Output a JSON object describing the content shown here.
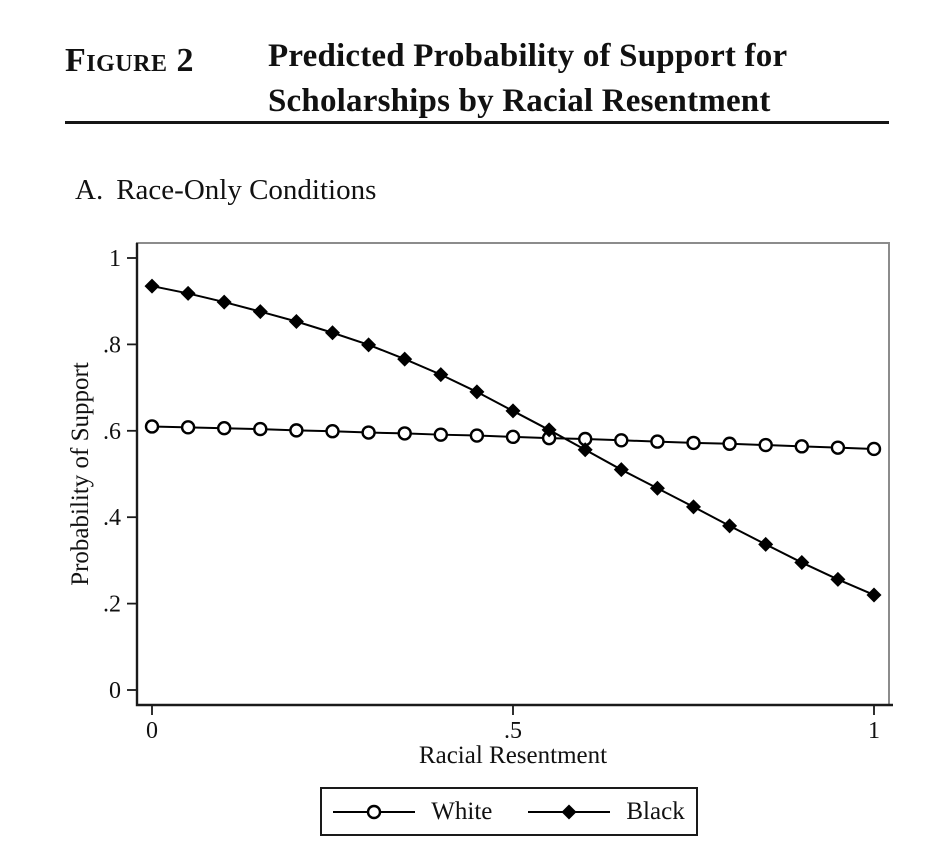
{
  "header": {
    "figure_label": "Figure 2",
    "title_line1": "Predicted Probability of Support for",
    "title_line2": "Scholarships by Racial Resentment"
  },
  "panel": {
    "prefix": "A.",
    "title": "Race-Only Conditions"
  },
  "legend": {
    "items": [
      {
        "label": "White",
        "marker": "open-circle"
      },
      {
        "label": "Black",
        "marker": "filled-diamond"
      }
    ],
    "position": "bottom"
  },
  "colors": {
    "text": "#111111",
    "series_line": "#000000",
    "marker_fill_white_series": "#ffffff",
    "marker_fill_black_series": "#000000",
    "plot_border": "#8c8c8c",
    "axis_line": "#1a1a1a",
    "background": "#ffffff"
  },
  "chart_data": {
    "type": "line",
    "title": "Predicted Probability of Support for Scholarships by Racial Resentment",
    "panel": "A. Race-Only Conditions",
    "xlabel": "Racial Resentment",
    "ylabel": "Probability of Support",
    "xlim": [
      0,
      1
    ],
    "ylim": [
      0,
      1
    ],
    "grid": false,
    "legend_position": "bottom",
    "xticks": {
      "values": [
        0,
        0.5,
        1
      ],
      "labels": [
        "0",
        ".5",
        "1"
      ]
    },
    "yticks": {
      "values": [
        0,
        0.2,
        0.4,
        0.6,
        0.8,
        1
      ],
      "labels": [
        "0",
        ".2",
        ".4",
        ".6",
        ".8",
        "1"
      ]
    },
    "x": [
      0,
      0.05,
      0.1,
      0.15,
      0.2,
      0.25,
      0.3,
      0.35,
      0.4,
      0.45,
      0.5,
      0.55,
      0.6,
      0.65,
      0.7,
      0.75,
      0.8,
      0.85,
      0.9,
      0.95,
      1
    ],
    "series": [
      {
        "name": "White",
        "marker": "open-circle",
        "values": [
          0.61,
          0.608,
          0.606,
          0.604,
          0.601,
          0.599,
          0.596,
          0.594,
          0.591,
          0.589,
          0.586,
          0.583,
          0.581,
          0.578,
          0.575,
          0.572,
          0.57,
          0.567,
          0.564,
          0.561,
          0.558
        ]
      },
      {
        "name": "Black",
        "marker": "filled-diamond",
        "values": [
          0.935,
          0.918,
          0.898,
          0.876,
          0.853,
          0.827,
          0.799,
          0.766,
          0.73,
          0.69,
          0.646,
          0.602,
          0.556,
          0.51,
          0.467,
          0.424,
          0.38,
          0.337,
          0.295,
          0.256,
          0.22
        ]
      }
    ]
  }
}
